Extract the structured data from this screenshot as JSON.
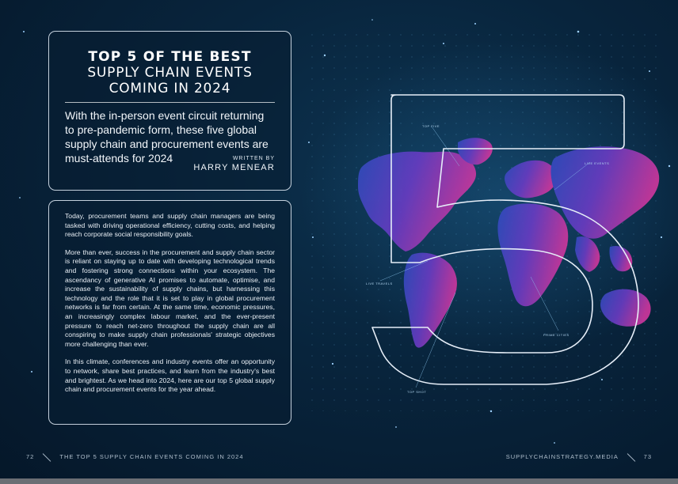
{
  "article": {
    "title_line1": "TOP 5 OF THE BEST",
    "title_line2": "SUPPLY CHAIN EVENTS",
    "title_line3": "COMING IN 2024",
    "standfirst": "With the in-person event circuit returning to pre-pandemic form, these five global supply chain and procurement events are must-attends for 2024",
    "byline_label": "WRITTEN BY",
    "byline_name": "HARRY MENEAR",
    "paragraphs": [
      "Today, procurement teams and supply chain managers are being tasked with driving operational efficiency, cutting costs, and helping reach corporate social responsibility goals.",
      "More than ever, success in the procurement and supply chain sector is reliant on staying up to date with developing technological trends and fostering strong connections within your ecosystem. The ascendancy of generative AI promises to automate, optimise, and increase the sustainability of supply chains, but harnessing this technology and the role that it is set to play in global procurement networks is far from certain. At the same time, economic pressures, an increasingly complex labour market, and the ever-present pressure to reach net-zero throughout the supply chain are all conspiring to make supply chain professionals' strategic objectives more challenging than ever.",
      "In this climate, conferences and industry events offer an opportunity to network, share best practices, and learn from the industry's best and brightest. As we head into 2024, here are our top 5 global supply chain and procurement events for the year ahead."
    ]
  },
  "graphic": {
    "big_numeral": "5",
    "map_labels": [
      "TOP FIVE",
      "LIVE EVENTS",
      "LIVE TRAVELS",
      "PRIME CITIES",
      "TOP SHOT"
    ]
  },
  "footer": {
    "left_page_number": "72",
    "left_running_title": "THE TOP 5 SUPPLY CHAIN EVENTS COMING IN 2024",
    "right_site": "SUPPLYCHAINSTRATEGY.MEDIA",
    "right_page_number": "73"
  },
  "colors": {
    "background": "#08243c",
    "map_blue": "#3b52c9",
    "map_magenta": "#c0339e",
    "outline": "#e6eef8"
  }
}
